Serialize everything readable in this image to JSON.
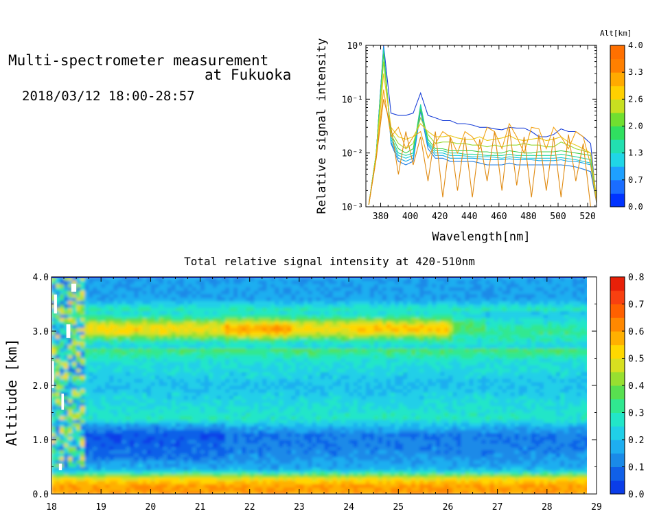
{
  "header": {
    "title_line1": "Multi-spectrometer measurement",
    "title_line2": "at Fukuoka",
    "date_range": "2018/03/12 18:00-28:57"
  },
  "chart_data": [
    {
      "type": "line",
      "xlabel": "Wavelength[nm]",
      "ylabel": "Relative signal intensity",
      "yscale": "log",
      "xlim": [
        370,
        526
      ],
      "ylim": [
        0.001,
        1
      ],
      "x_ticks": [
        380,
        400,
        420,
        440,
        460,
        480,
        500,
        520
      ],
      "y_ticks": [
        "10⁻³",
        "10⁻²",
        "10⁻¹",
        "10⁰"
      ],
      "colorbar": {
        "title": "Alt[km]",
        "tick_labels": [
          "0.0",
          "0.7",
          "1.3",
          "2.0",
          "2.6",
          "3.3",
          "4.0"
        ],
        "colors": [
          "#0033ff",
          "#1a6dff",
          "#1ea0ff",
          "#20d6e6",
          "#22e0b0",
          "#30e060",
          "#70e030",
          "#c8e020",
          "#ffd000",
          "#ffaa00",
          "#ff8000",
          "#ff7000"
        ]
      },
      "x": [
        372,
        377,
        382,
        387,
        392,
        397,
        402,
        407,
        412,
        417,
        422,
        427,
        432,
        437,
        442,
        447,
        452,
        457,
        462,
        467,
        472,
        477,
        482,
        487,
        492,
        497,
        502,
        507,
        512,
        517,
        522,
        526
      ],
      "series": [
        {
          "color": "#1a40d8",
          "values": [
            0.0011,
            0.01,
            1.0,
            0.055,
            0.05,
            0.05,
            0.055,
            0.13,
            0.05,
            0.045,
            0.04,
            0.04,
            0.035,
            0.035,
            0.033,
            0.03,
            0.03,
            0.028,
            0.027,
            0.03,
            0.029,
            0.029,
            0.025,
            0.02,
            0.02,
            0.022,
            0.028,
            0.025,
            0.025,
            0.02,
            0.015,
            0.0012
          ]
        },
        {
          "color": "#1e7be0",
          "values": [
            0.0011,
            0.01,
            0.95,
            0.015,
            0.007,
            0.006,
            0.007,
            0.06,
            0.012,
            0.008,
            0.008,
            0.007,
            0.007,
            0.007,
            0.007,
            0.0065,
            0.006,
            0.006,
            0.006,
            0.0065,
            0.006,
            0.006,
            0.006,
            0.006,
            0.006,
            0.006,
            0.006,
            0.0058,
            0.0055,
            0.005,
            0.0045,
            0.0012
          ]
        },
        {
          "color": "#18a8e8",
          "values": [
            0.0011,
            0.01,
            0.9,
            0.016,
            0.008,
            0.007,
            0.008,
            0.07,
            0.014,
            0.009,
            0.009,
            0.008,
            0.008,
            0.008,
            0.008,
            0.0078,
            0.0075,
            0.0075,
            0.0075,
            0.0078,
            0.0075,
            0.0075,
            0.0075,
            0.0072,
            0.0072,
            0.0072,
            0.0075,
            0.007,
            0.007,
            0.0065,
            0.006,
            0.0012
          ]
        },
        {
          "color": "#1cc8d8",
          "values": [
            0.0011,
            0.01,
            0.85,
            0.018,
            0.009,
            0.008,
            0.009,
            0.075,
            0.015,
            0.01,
            0.01,
            0.009,
            0.009,
            0.0088,
            0.0085,
            0.0085,
            0.0085,
            0.0083,
            0.008,
            0.0085,
            0.0082,
            0.008,
            0.008,
            0.008,
            0.008,
            0.008,
            0.0082,
            0.0078,
            0.0075,
            0.007,
            0.0065,
            0.0013
          ]
        },
        {
          "color": "#26d6a0",
          "values": [
            0.0011,
            0.01,
            0.8,
            0.02,
            0.01,
            0.009,
            0.01,
            0.08,
            0.016,
            0.011,
            0.011,
            0.01,
            0.01,
            0.0095,
            0.0095,
            0.0093,
            0.009,
            0.009,
            0.009,
            0.0095,
            0.009,
            0.009,
            0.009,
            0.009,
            0.009,
            0.009,
            0.0095,
            0.009,
            0.0085,
            0.008,
            0.0075,
            0.0014
          ]
        },
        {
          "color": "#40d050",
          "values": [
            0.0011,
            0.01,
            0.7,
            0.022,
            0.012,
            0.01,
            0.012,
            0.065,
            0.018,
            0.012,
            0.012,
            0.011,
            0.011,
            0.011,
            0.011,
            0.0105,
            0.0105,
            0.01,
            0.01,
            0.011,
            0.0105,
            0.01,
            0.01,
            0.0105,
            0.0105,
            0.0105,
            0.011,
            0.0105,
            0.01,
            0.0095,
            0.009,
            0.0015
          ]
        },
        {
          "color": "#98d830",
          "values": [
            0.0011,
            0.01,
            0.5,
            0.025,
            0.015,
            0.012,
            0.015,
            0.045,
            0.022,
            0.015,
            0.016,
            0.016,
            0.015,
            0.015,
            0.014,
            0.014,
            0.013,
            0.014,
            0.013,
            0.014,
            0.014,
            0.015,
            0.014,
            0.014,
            0.013,
            0.013,
            0.016,
            0.014,
            0.012,
            0.011,
            0.01,
            0.0015
          ]
        },
        {
          "color": "#e8c818",
          "values": [
            0.0011,
            0.009,
            0.3,
            0.03,
            0.02,
            0.018,
            0.02,
            0.035,
            0.025,
            0.02,
            0.02,
            0.021,
            0.019,
            0.018,
            0.018,
            0.02,
            0.017,
            0.018,
            0.019,
            0.021,
            0.018,
            0.017,
            0.018,
            0.019,
            0.017,
            0.018,
            0.02,
            0.016,
            0.014,
            0.012,
            0.01,
            0.0015
          ]
        },
        {
          "color": "#f2a010",
          "values": [
            0.0011,
            0.008,
            0.15,
            0.02,
            0.03,
            0.012,
            0.02,
            0.025,
            0.008,
            0.015,
            0.025,
            0.02,
            0.01,
            0.025,
            0.02,
            0.012,
            0.03,
            0.025,
            0.012,
            0.035,
            0.02,
            0.01,
            0.03,
            0.028,
            0.012,
            0.03,
            0.02,
            0.012,
            0.025,
            0.02,
            0.006,
            0.0012
          ]
        },
        {
          "color": "#e08a10",
          "values": [
            0.0011,
            0.008,
            0.1,
            0.03,
            0.004,
            0.025,
            0.006,
            0.02,
            0.003,
            0.025,
            0.0015,
            0.02,
            0.002,
            0.02,
            0.0015,
            0.018,
            0.003,
            0.025,
            0.002,
            0.03,
            0.0025,
            0.02,
            0.0015,
            0.022,
            0.002,
            0.02,
            0.0015,
            0.022,
            0.003,
            0.015,
            0.001,
            0.001
          ]
        }
      ]
    },
    {
      "type": "heatmap",
      "title": "Total relative signal intensity at 420-510nm",
      "ylabel": "Altitude [km]",
      "xlim": [
        18,
        29
      ],
      "ylim": [
        0,
        4
      ],
      "x_ticks": [
        "18",
        "19",
        "20",
        "21",
        "22",
        "23",
        "24",
        "25",
        "26",
        "27",
        "28",
        "29"
      ],
      "y_ticks": [
        "0.0",
        "1.0",
        "2.0",
        "3.0",
        "4.0"
      ],
      "z_range": [
        0,
        0.8
      ],
      "colorbar": {
        "tick_labels": [
          "0.0",
          "0.1",
          "0.2",
          "0.3",
          "0.4",
          "0.5",
          "0.6",
          "0.7",
          "0.8"
        ],
        "colors": [
          "#0a3de8",
          "#1060e8",
          "#1a8ae8",
          "#1eaef0",
          "#20cfe8",
          "#22e6c8",
          "#30e890",
          "#58e050",
          "#98e030",
          "#d8e020",
          "#ffd800",
          "#ffb000",
          "#ff8800",
          "#ff6000",
          "#f84010",
          "#e82008"
        ]
      },
      "layers": [
        {
          "alt_km": 0.15,
          "value": 0.6
        },
        {
          "alt_km": 0.3,
          "value": 0.5
        },
        {
          "alt_km": 0.45,
          "value": 0.18
        },
        {
          "alt_km": 0.8,
          "value": 0.12
        },
        {
          "alt_km": 1.1,
          "value": 0.1
        },
        {
          "alt_km": 1.4,
          "value": 0.28
        },
        {
          "alt_km": 2.0,
          "value": 0.2
        },
        {
          "alt_km": 2.5,
          "value": 0.27
        },
        {
          "alt_km": 3.0,
          "value": 0.55
        },
        {
          "alt_km": 3.6,
          "value": 0.16
        }
      ]
    }
  ]
}
